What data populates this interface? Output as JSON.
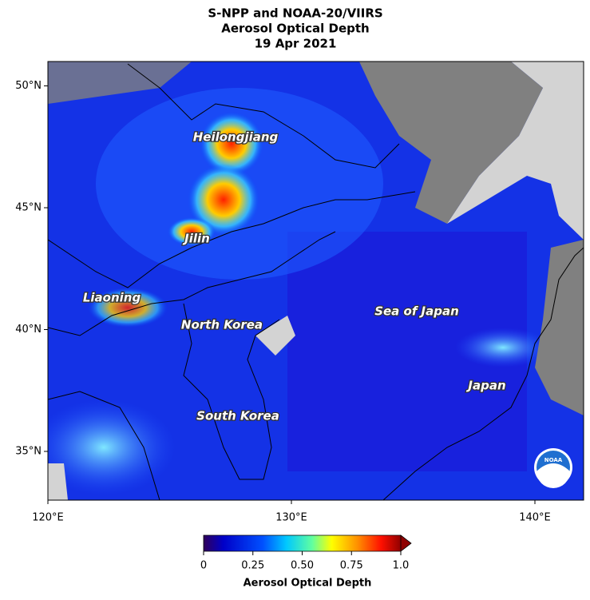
{
  "chart_data": {
    "type": "map",
    "title": [
      "S-NPP and NOAA-20/VIIRS",
      "Aerosol Optical Depth",
      "19 Apr 2021"
    ],
    "xlim": [
      120,
      142
    ],
    "ylim": [
      33,
      51
    ],
    "xticks": [
      {
        "value": 120,
        "label": "120°E"
      },
      {
        "value": 130,
        "label": "130°E"
      },
      {
        "value": 140,
        "label": "140°E"
      }
    ],
    "yticks": [
      {
        "value": 35,
        "label": "35°N"
      },
      {
        "value": 40,
        "label": "40°N"
      },
      {
        "value": 45,
        "label": "45°N"
      },
      {
        "value": 50,
        "label": "50°N"
      }
    ],
    "annotations": [
      "Heilongjiang",
      "Jilin",
      "Liaoning",
      "North Korea",
      "Sea of Japan",
      "Japan",
      "South Korea"
    ],
    "colorbar": {
      "label": "Aerosol Optical Depth",
      "lim": [
        0,
        1
      ],
      "ticks": [
        0,
        0.25,
        {
          "value": 0.5,
          "label": "0.50"
        },
        0.75,
        {
          "value": 1,
          "label": "1.0"
        }
      ]
    },
    "logo_text": "NOAA"
  }
}
